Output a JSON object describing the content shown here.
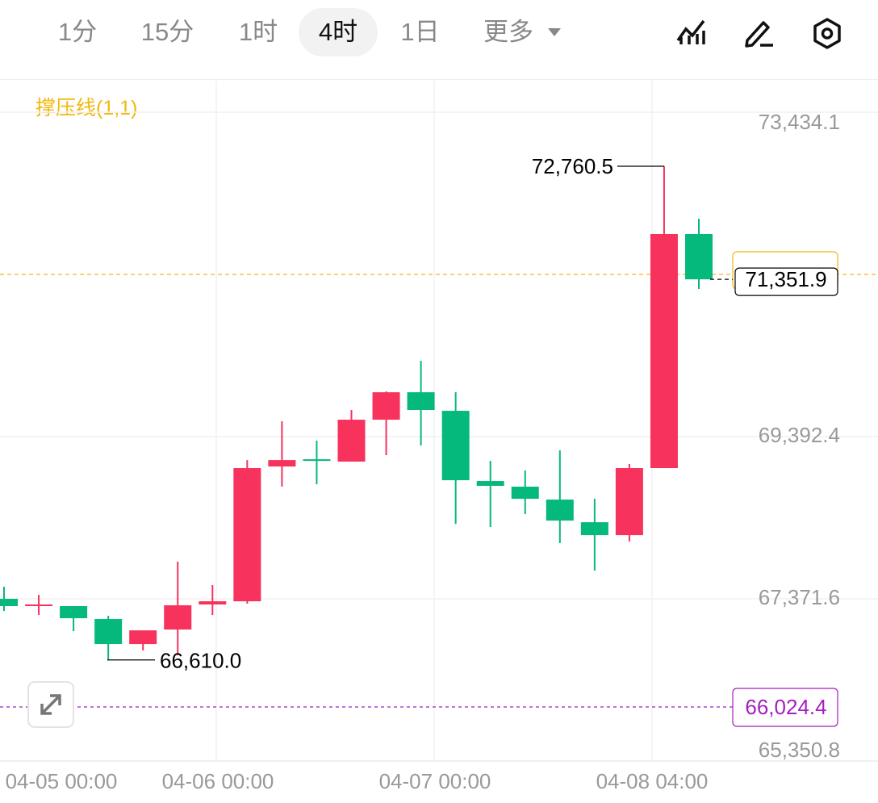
{
  "tabs": [
    "1分",
    "15分",
    "1时",
    "4时",
    "1日",
    "更多"
  ],
  "active_tab": 3,
  "indicator": "撑压线(1,1)",
  "chart_data": {
    "type": "candlestick",
    "categories": [
      null,
      null,
      null,
      null,
      null,
      null,
      null,
      null,
      null,
      null,
      null,
      null,
      null,
      null,
      null,
      null,
      null,
      null,
      null,
      null,
      null
    ],
    "open": [
      67371.6,
      67281,
      67281,
      67120,
      66808,
      66989,
      67301,
      67341,
      69020,
      69110,
      69081,
      69603,
      69945,
      69714,
      68839,
      68769,
      68608,
      68326,
      68165,
      69000,
      71916
    ],
    "high": [
      67522,
      67421,
      67281,
      67160,
      66969,
      67834,
      67542,
      69100,
      69583,
      69342,
      69724,
      69955,
      70337,
      69945,
      69090,
      68970,
      69221,
      68618,
      69050,
      72760.5,
      72107
    ],
    "low": [
      67220,
      67170,
      66969,
      66610,
      66728,
      66668,
      67170,
      67311,
      68769,
      68799,
      69081,
      69161,
      69282,
      68306,
      68266,
      68427,
      68065,
      67723,
      68085,
      69000,
      71232
    ],
    "close": [
      67281,
      67301,
      67130,
      66808,
      66979,
      67291,
      67341,
      69000,
      69100,
      69090,
      69603,
      69945,
      69724,
      68849,
      68779,
      68618,
      68346,
      68165,
      69000,
      71916,
      71351.9
    ],
    "up_color": "#f7325c",
    "down_color": "#05b97c",
    "x_labels": [
      "04-05 00:00",
      "04-06 00:00",
      "04-07 00:00",
      "04-08 04:00"
    ],
    "ylim": [
      65350.8,
      73826.2
    ],
    "yticks": [
      {
        "value": 65350.8,
        "label": "65,350.8"
      },
      {
        "value": 67371.6,
        "label": "67,371.6"
      },
      {
        "value": 69392.4,
        "label": "69,392.4"
      },
      {
        "value": 73434.1,
        "label": "73,434.1"
      }
    ],
    "grid": true,
    "annotations": [
      {
        "value": 72760.5,
        "label": "72,760.5"
      },
      {
        "value": 66610.0,
        "label": "66,610.0"
      }
    ],
    "price_lines": [
      {
        "value": 71351.9,
        "label": "71,351.9",
        "color": "#000000"
      },
      {
        "value": 66024.4,
        "label": "66,024.4",
        "color": "#a51fbf"
      }
    ],
    "support_lines": [
      {
        "value": 71413,
        "color": "#f5c242"
      }
    ]
  }
}
